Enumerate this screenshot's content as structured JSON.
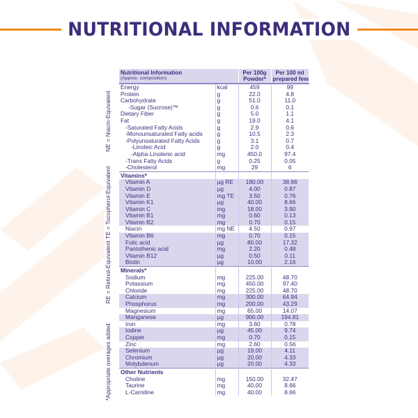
{
  "page": {
    "title": "NUTRITIONAL INFORMATION",
    "colors": {
      "accent": "#ef8a1d",
      "text": "#3d2d7a",
      "shade": "#d9d7ee",
      "deco": "#fbeee0"
    }
  },
  "side_notes": [
    "NE = Niacin-Equivalent",
    "TE = Tocopherol-Equivalent",
    "RE = Retinol-Equivalent",
    "*Appropriate overages added"
  ],
  "table": {
    "header": {
      "name_line1": "Nutritional Information",
      "name_line2": "(Approx. composition)",
      "col1_line1": "Per 100g",
      "col1_line2": "Powder*",
      "col2_line1": "Per 100 ml",
      "col2_line2": "prepared feed"
    },
    "rows": [
      {
        "name": "Energy",
        "unit": "kcal",
        "v1": "459",
        "v2": "99",
        "indent": 0,
        "shade": false,
        "section": false
      },
      {
        "name": "Protein",
        "unit": "g",
        "v1": "22.0",
        "v2": "4.8",
        "indent": 0,
        "shade": false,
        "section": false
      },
      {
        "name": "Carbohydrate",
        "unit": "g",
        "v1": "51.0",
        "v2": "11.0",
        "indent": 0,
        "shade": false,
        "section": false
      },
      {
        "name": "-Sugar (Sucrose)™",
        "unit": "g",
        "v1": "0.6",
        "v2": "0.1",
        "indent": 2,
        "shade": false,
        "section": false
      },
      {
        "name": "Dietary Fiber",
        "unit": "g",
        "v1": "5.0",
        "v2": "1.1",
        "indent": 0,
        "shade": false,
        "section": false
      },
      {
        "name": "Fat",
        "unit": "g",
        "v1": "19.0",
        "v2": "4.1",
        "indent": 0,
        "shade": false,
        "section": false
      },
      {
        "name": "-Saturated Fatty Acids",
        "unit": "g",
        "v1": "2.9",
        "v2": "0.6",
        "indent": 1,
        "shade": false,
        "section": false
      },
      {
        "name": "-Monounsaturated Fatty acids",
        "unit": "g",
        "v1": "10.5",
        "v2": "2.3",
        "indent": 1,
        "shade": false,
        "section": false
      },
      {
        "name": "-Polyunsaturated Fatty Acids",
        "unit": "g",
        "v1": "3.1",
        "v2": "0.7",
        "indent": 1,
        "shade": false,
        "section": false
      },
      {
        "name": "-Linoleic Acid",
        "unit": "g",
        "v1": "2.0",
        "v2": "0.4",
        "indent": 3,
        "shade": false,
        "section": false
      },
      {
        "name": "-Alpha-Linolenic acid",
        "unit": "mg",
        "v1": "450.0",
        "v2": "97.4",
        "indent": 3,
        "shade": false,
        "section": false
      },
      {
        "name": "-Trans Fatty Acids",
        "unit": "g",
        "v1": "0.25",
        "v2": "0.05",
        "indent": 1,
        "shade": false,
        "section": false
      },
      {
        "name": "-Cholesterol",
        "unit": "mg",
        "v1": "29",
        "v2": "6",
        "indent": 1,
        "shade": false,
        "section": false
      },
      {
        "name": "Vitamins*",
        "unit": "",
        "v1": "",
        "v2": "",
        "indent": 0,
        "shade": false,
        "section": true
      },
      {
        "name": "Vitamin A",
        "unit": "µg RE",
        "v1": "180.00",
        "v2": "38.96",
        "indent": 1,
        "shade": true,
        "section": false
      },
      {
        "name": "Vitamin D",
        "unit": "µg",
        "v1": "4.00",
        "v2": "0.87",
        "indent": 1,
        "shade": true,
        "section": false
      },
      {
        "name": "Vitamin E",
        "unit": "mg TE",
        "v1": "3.50",
        "v2": "0.76",
        "indent": 1,
        "shade": true,
        "section": false
      },
      {
        "name": "Vitamin K1",
        "unit": "µg",
        "v1": "40.00",
        "v2": "8.66",
        "indent": 1,
        "shade": true,
        "section": false
      },
      {
        "name": "Vitamin C",
        "unit": "mg",
        "v1": "18.00",
        "v2": "3.90",
        "indent": 1,
        "shade": true,
        "section": false
      },
      {
        "name": "Vitamin B1",
        "unit": "mg",
        "v1": "0.60",
        "v2": "0.13",
        "indent": 1,
        "shade": true,
        "section": false
      },
      {
        "name": "Vitamin B2",
        "unit": "mg",
        "v1": "0.70",
        "v2": "0.15",
        "indent": 1,
        "shade": true,
        "section": false
      },
      {
        "name": "Niacin",
        "unit": "mg NE",
        "v1": "4.50",
        "v2": "0.97",
        "indent": 1,
        "shade": false,
        "section": false
      },
      {
        "name": "Vitamin B6",
        "unit": "mg",
        "v1": "0.70",
        "v2": "0.15",
        "indent": 1,
        "shade": true,
        "section": false
      },
      {
        "name": "Folic acid",
        "unit": "µg",
        "v1": "80.00",
        "v2": "17.32",
        "indent": 1,
        "shade": true,
        "section": false
      },
      {
        "name": "Pantothenic acid",
        "unit": "mg",
        "v1": "2.20",
        "v2": "0.48",
        "indent": 1,
        "shade": true,
        "section": false
      },
      {
        "name": "Vitamin B12",
        "unit": "µg",
        "v1": "0.50",
        "v2": "0.11",
        "indent": 1,
        "shade": true,
        "section": false
      },
      {
        "name": "Biotin",
        "unit": "µg",
        "v1": "10.00",
        "v2": "2.16",
        "indent": 1,
        "shade": true,
        "section": false
      },
      {
        "name": "Minerals*",
        "unit": "",
        "v1": "",
        "v2": "",
        "indent": 0,
        "shade": false,
        "section": true
      },
      {
        "name": "Sodium",
        "unit": "mg",
        "v1": "225.00",
        "v2": "48.70",
        "indent": 1,
        "shade": false,
        "section": false
      },
      {
        "name": "Potassium",
        "unit": "mg",
        "v1": "450.00",
        "v2": "97.40",
        "indent": 1,
        "shade": false,
        "section": false
      },
      {
        "name": "Chloride",
        "unit": "mg",
        "v1": "225.00",
        "v2": "48.70",
        "indent": 1,
        "shade": false,
        "section": false
      },
      {
        "name": "Calcium",
        "unit": "mg",
        "v1": "300.00",
        "v2": "64.94",
        "indent": 1,
        "shade": true,
        "section": false
      },
      {
        "name": "Phosphorus",
        "unit": "mg",
        "v1": "200.00",
        "v2": "43.29",
        "indent": 1,
        "shade": true,
        "section": false
      },
      {
        "name": "Magnesium",
        "unit": "mg",
        "v1": "65.00",
        "v2": "14.07",
        "indent": 1,
        "shade": false,
        "section": false
      },
      {
        "name": "Manganese",
        "unit": "µg",
        "v1": "900.00",
        "v2": "194.81",
        "indent": 1,
        "shade": true,
        "section": false
      },
      {
        "name": "Iron",
        "unit": "mg",
        "v1": "3.60",
        "v2": "0.78",
        "indent": 1,
        "shade": false,
        "section": false
      },
      {
        "name": "Iodine",
        "unit": "µg",
        "v1": "45.00",
        "v2": "9.74",
        "indent": 1,
        "shade": true,
        "section": false
      },
      {
        "name": "Copper",
        "unit": "mg",
        "v1": "0.70",
        "v2": "0.15",
        "indent": 1,
        "shade": true,
        "section": false
      },
      {
        "name": "Zinc",
        "unit": "mg",
        "v1": "2.60",
        "v2": "0.56",
        "indent": 1,
        "shade": false,
        "section": false
      },
      {
        "name": "Selenium",
        "unit": "µg",
        "v1": "19.00",
        "v2": "4.11",
        "indent": 1,
        "shade": true,
        "section": false
      },
      {
        "name": "Chromium",
        "unit": "µg",
        "v1": "20.00",
        "v2": "4.33",
        "indent": 1,
        "shade": true,
        "section": false
      },
      {
        "name": "Molybdenum",
        "unit": "µg",
        "v1": "20.00",
        "v2": "4.33",
        "indent": 1,
        "shade": true,
        "section": false
      },
      {
        "name": "Other Nutrients",
        "unit": "",
        "v1": "",
        "v2": "",
        "indent": 0,
        "shade": false,
        "section": true
      },
      {
        "name": "Choline",
        "unit": "mg",
        "v1": "150.00",
        "v2": "32.47",
        "indent": 1,
        "shade": false,
        "section": false
      },
      {
        "name": "Taurine",
        "unit": "mg",
        "v1": "40.00",
        "v2": "8.66",
        "indent": 1,
        "shade": false,
        "section": false
      },
      {
        "name": "L-Carnitine",
        "unit": "mg",
        "v1": "40.00",
        "v2": "8.66",
        "indent": 1,
        "shade": false,
        "section": false
      }
    ]
  }
}
